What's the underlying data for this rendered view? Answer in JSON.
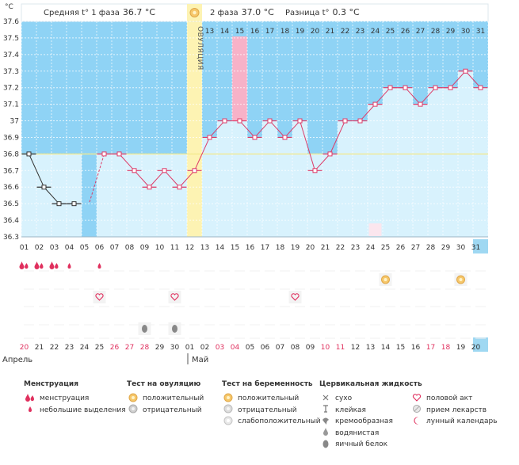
{
  "chart_data": {
    "type": "line",
    "title": "",
    "ylabel": "°C",
    "ylim": [
      36.3,
      37.6
    ],
    "y_ticks": [
      "36.3",
      "36.4",
      "36.5",
      "36.6",
      "36.7",
      "36.8",
      "36.9",
      "37",
      "37.1",
      "37.2",
      "37.3",
      "37.4",
      "37.5",
      "37.6"
    ],
    "cycle_days": [
      "01",
      "02",
      "03",
      "04",
      "05",
      "06",
      "07",
      "08",
      "09",
      "10",
      "11",
      "12",
      "13",
      "14",
      "15",
      "16",
      "17",
      "18",
      "19",
      "20",
      "21",
      "22",
      "23",
      "24",
      "25",
      "26",
      "27",
      "28",
      "29",
      "30",
      "31"
    ],
    "calendar_days": [
      "20",
      "21",
      "22",
      "23",
      "24",
      "25",
      "26",
      "27",
      "28",
      "29",
      "30",
      "01",
      "02",
      "03",
      "04",
      "05",
      "06",
      "07",
      "08",
      "09",
      "10",
      "11",
      "12",
      "13",
      "14",
      "15",
      "16",
      "17",
      "18",
      "19",
      "20"
    ],
    "weekend_calendar": [
      "20",
      "26",
      "27",
      "28",
      "03",
      "04",
      "10",
      "11",
      "17",
      "18"
    ],
    "months": [
      "Апрель",
      "Май"
    ],
    "series": [
      {
        "name": "Базальная температура",
        "values": [
          36.8,
          36.6,
          36.5,
          36.5,
          null,
          36.8,
          36.8,
          36.7,
          36.6,
          36.7,
          36.6,
          36.7,
          36.9,
          37.0,
          37.0,
          36.9,
          37.0,
          36.9,
          37.0,
          36.7,
          36.8,
          37.0,
          37.0,
          37.1,
          37.2,
          37.2,
          37.1,
          37.2,
          37.2,
          37.3,
          37.2
        ]
      }
    ],
    "coverline": 36.8,
    "ovulation_day": "12",
    "ovulation_label": "ОВУЛЯЦИЯ",
    "highlight_day": "15",
    "today_day": "31",
    "phase1_text": "Средняя t° 1 фаза",
    "phase1_value": "36.7 °C",
    "phase2_text": "2 фаза",
    "phase2_value": "37.0 °C",
    "diff_text": "Разница t°",
    "diff_value": "0.3 °C",
    "markers": {
      "menstruation": [
        "01",
        "02",
        "03"
      ],
      "light_spotting": [
        "04",
        "06"
      ],
      "ovulation_test_positive": [
        "25",
        "30"
      ],
      "intercourse": [
        "06",
        "11",
        "19"
      ],
      "egg_white": [
        "09",
        "11"
      ],
      "lunar": [
        "24"
      ]
    }
  },
  "legend": {
    "menstruation": {
      "title": "Менструация",
      "items": [
        {
          "icon": "drop-double",
          "text": "менструация"
        },
        {
          "icon": "drop-small",
          "text": "небольшие выделения"
        }
      ]
    },
    "ovulation_test": {
      "title": "Тест на овуляцию",
      "items": [
        {
          "icon": "test-positive",
          "text": "положительный"
        },
        {
          "icon": "test-negative",
          "text": "отрицательный"
        }
      ]
    },
    "pregnancy_test": {
      "title": "Тест на беременность",
      "items": [
        {
          "icon": "test-positive",
          "text": "положительный"
        },
        {
          "icon": "test-negative",
          "text": "отрицательный"
        },
        {
          "icon": "test-weak",
          "text": "слабоположительный"
        }
      ]
    },
    "cervical": {
      "title": "Цервикальная жидкость",
      "items": [
        {
          "icon": "cross",
          "text": "сухо"
        },
        {
          "icon": "sticky",
          "text": "клейкая"
        },
        {
          "icon": "creamy",
          "text": "кремообразная"
        },
        {
          "icon": "watery",
          "text": "водянистая"
        },
        {
          "icon": "egg-white",
          "text": "яичный белок"
        }
      ]
    },
    "other": {
      "items": [
        {
          "icon": "heart",
          "text": "половой акт"
        },
        {
          "icon": "pill",
          "text": "прием лекарств"
        },
        {
          "icon": "moon",
          "text": "лунный календарь"
        }
      ]
    }
  },
  "colors": {
    "bg_blue": "#8fd3f5",
    "light_blue": "#d8f2fd",
    "ovulation": "#fdf3b3",
    "pink": "#f7b2c8",
    "line": "#dd3b68",
    "marker_red": "#e0305e",
    "grid": "#e4e4e4"
  }
}
